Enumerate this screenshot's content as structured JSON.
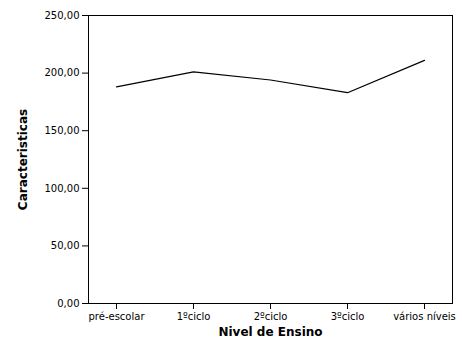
{
  "chart_data": {
    "type": "line",
    "x_label": "Nivel de Ensino",
    "y_label": "Caracteristicas",
    "categories": [
      "pré-escolar",
      "1ºciclo",
      "2ºciclo",
      "3ºciclo",
      "vários níveis"
    ],
    "values": [
      188,
      201,
      194,
      183,
      211
    ],
    "color": "#000000",
    "ylim": [
      0,
      250
    ],
    "yticks": [
      {
        "value": 0,
        "label": "0,00"
      },
      {
        "value": 50,
        "label": "50,00"
      },
      {
        "value": 100,
        "label": "100,00"
      },
      {
        "value": 150,
        "label": "150,00"
      },
      {
        "value": 200,
        "label": "200,00"
      },
      {
        "value": 250,
        "label": "250,00"
      }
    ],
    "grid": false
  }
}
